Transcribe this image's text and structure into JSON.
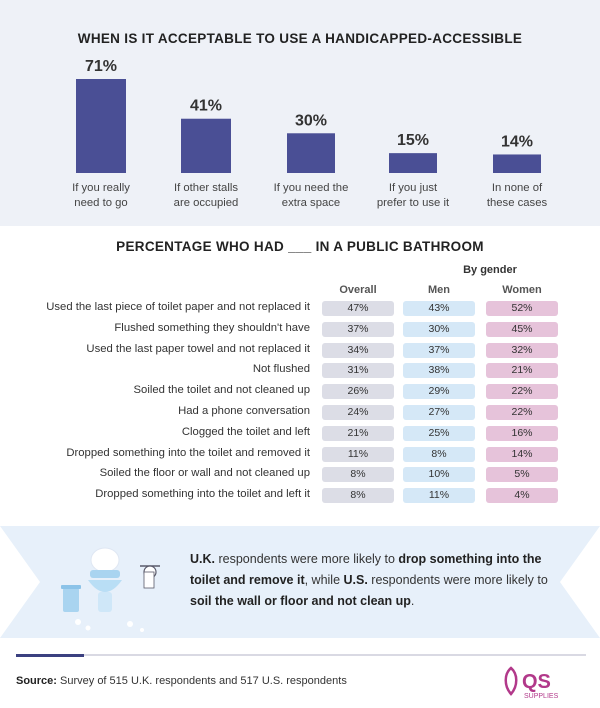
{
  "chart_data": [
    {
      "type": "bar",
      "title": "WHEN IS IT ACCEPTABLE TO USE A HANDICAPPED-ACCESSIBLE",
      "categories": [
        "If you really need to go",
        "If other stalls are occupied",
        "If you need the extra space",
        "If you just prefer to use it",
        "In none of these cases"
      ],
      "category_lines": [
        [
          "If you really",
          "need to go"
        ],
        [
          "If other stalls",
          "are occupied"
        ],
        [
          "If you need the",
          "extra space"
        ],
        [
          "If you just",
          "prefer to use it"
        ],
        [
          "In none of",
          "these cases"
        ]
      ],
      "values": [
        71,
        41,
        30,
        15,
        14
      ],
      "value_labels": [
        "71%",
        "41%",
        "30%",
        "15%",
        "14%"
      ],
      "ylim": [
        0,
        71
      ],
      "grid": false,
      "color": "#4a4f95"
    },
    {
      "type": "table",
      "title": "PERCENTAGE WHO HAD ___ IN A PUBLIC BATHROOM",
      "group_header": "By gender",
      "columns": [
        "Overall",
        "Men",
        "Women"
      ],
      "rows": [
        {
          "label": "Used the last piece of toilet paper and not replaced it",
          "values": [
            "47%",
            "43%",
            "52%"
          ]
        },
        {
          "label": "Flushed something they shouldn't have",
          "values": [
            "37%",
            "30%",
            "45%"
          ]
        },
        {
          "label": "Used the last paper towel and not replaced it",
          "values": [
            "34%",
            "37%",
            "32%"
          ]
        },
        {
          "label": "Not flushed",
          "values": [
            "31%",
            "38%",
            "21%"
          ]
        },
        {
          "label": "Soiled the toilet and not cleaned up",
          "values": [
            "26%",
            "29%",
            "22%"
          ]
        },
        {
          "label": "Had a phone conversation",
          "values": [
            "24%",
            "27%",
            "22%"
          ]
        },
        {
          "label": "Clogged the toilet and left",
          "values": [
            "21%",
            "25%",
            "16%"
          ]
        },
        {
          "label": "Dropped something into the toilet and removed it",
          "values": [
            "11%",
            "8%",
            "14%"
          ]
        },
        {
          "label": "Soiled the floor or wall and not cleaned up",
          "values": [
            "8%",
            "10%",
            "5%"
          ]
        },
        {
          "label": "Dropped something into the toilet and left it",
          "values": [
            "8%",
            "11%",
            "4%"
          ]
        }
      ],
      "colors": {
        "overall": "#dcdde6",
        "men": "#d5e8f7",
        "women": "#e6c3da"
      }
    }
  ],
  "note": {
    "p1": "U.K.",
    "p2": " respondents were more likely to ",
    "p3": "drop something into the toilet and remove it",
    "p4": ", while ",
    "p5": "U.S.",
    "p6": " respondents were more likely to ",
    "p7": "soil the wall or floor and not clean up",
    "p8": "."
  },
  "footer": {
    "source_label": "Source:",
    "source_text": " Survey of 515 U.K. respondents and 517 U.S. respondents",
    "logo_text": "QS",
    "logo_sub": "SUPPLIES"
  },
  "colors": {
    "navy": "#4a4f95",
    "logo_pink": "#b2398a",
    "panel": "#eef1f7",
    "note_panel": "#e7f0fa"
  },
  "icons": [
    "toilet-icon",
    "toilet-paper-icon",
    "trash-can-icon"
  ]
}
